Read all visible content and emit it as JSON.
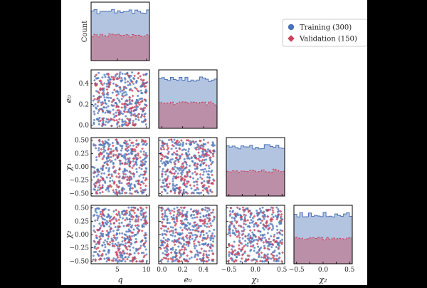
{
  "chart_data": {
    "type": "corner",
    "variables": [
      {
        "key": "q",
        "label": "q",
        "range": [
          0.5,
          10.5
        ],
        "ticks": [
          5,
          10
        ],
        "tick_labels": [
          "5",
          "10"
        ]
      },
      {
        "key": "e0",
        "label": "e₀",
        "range": [
          -0.03,
          0.53
        ],
        "ticks": [
          0.0,
          0.2,
          0.4
        ],
        "tick_labels": [
          "0.0",
          "0.2",
          "0.4"
        ]
      },
      {
        "key": "chi1",
        "label": "χ₁",
        "range": [
          -0.55,
          0.55
        ],
        "ticks": [
          -0.5,
          -0.25,
          0.0,
          0.25,
          0.5
        ],
        "tick_labels": [
          "−0.50",
          "−0.25",
          "0.00",
          "0.25",
          "0.50"
        ],
        "x_tick_labels": [
          "−0.5",
          "",
          "0.0",
          "",
          "0.5"
        ]
      },
      {
        "key": "chi2",
        "label": "χ₂",
        "range": [
          -0.55,
          0.55
        ],
        "ticks": [
          -0.5,
          -0.25,
          0.0,
          0.25,
          0.5
        ],
        "tick_labels": [
          "−0.50",
          "−0.25",
          "0.00",
          "0.25",
          "0.50"
        ],
        "x_tick_labels": [
          "−0.5",
          "",
          "0.0",
          "",
          "0.5"
        ]
      }
    ],
    "diagonal_ylabel": "Count",
    "series": [
      {
        "name": "Training (300)",
        "count": 300,
        "marker": "circle",
        "color": "#4a72b8"
      },
      {
        "name": "Validation (150)",
        "count": 150,
        "marker": "diamond",
        "color": "#c8445a"
      }
    ],
    "histogram_bins": 20,
    "distribution": "uniform",
    "legend_position": "top-right",
    "grid": false
  }
}
